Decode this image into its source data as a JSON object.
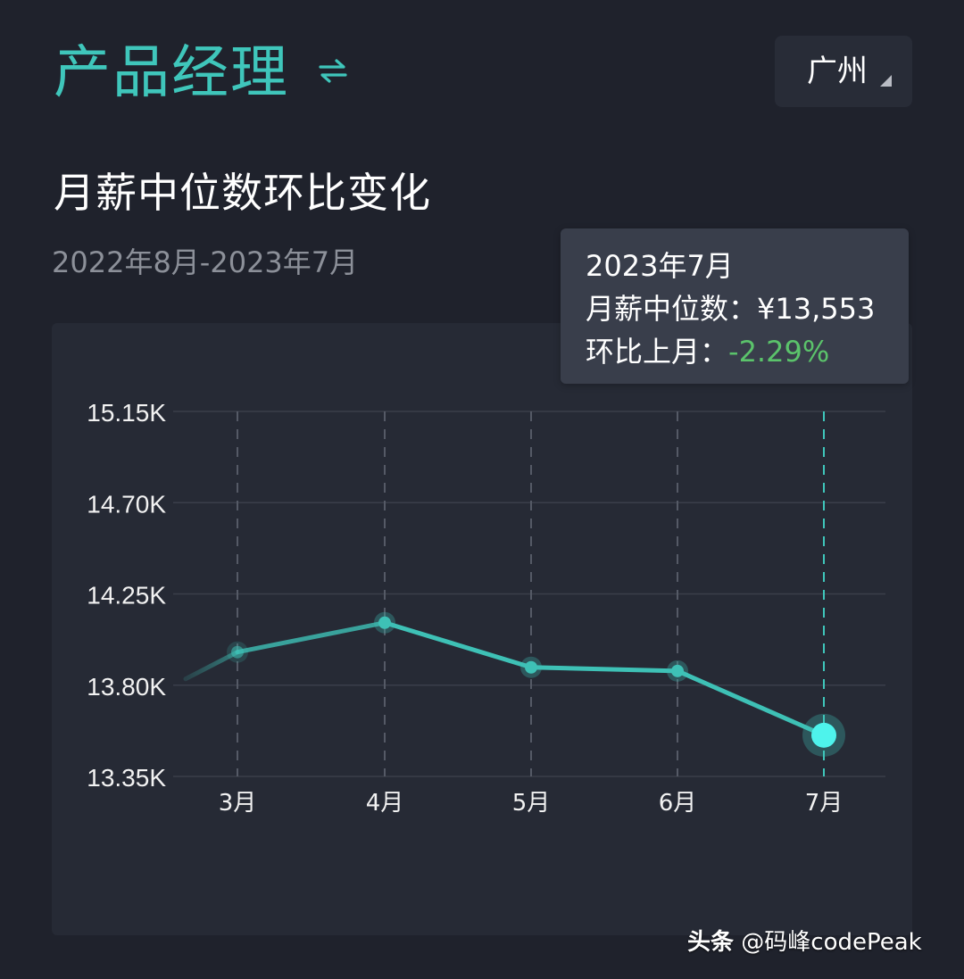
{
  "header": {
    "job_title": "产品经理",
    "swap_icon": "swap-arrows-icon",
    "city": "广州",
    "city_caret_icon": "caret-down-icon"
  },
  "section": {
    "title": "月薪中位数环比变化",
    "date_range": "2022年8月-2023年7月"
  },
  "tooltip": {
    "period": "2023年7月",
    "median_label": "月薪中位数：",
    "median_value": "¥13,553",
    "change_label": "环比上月：",
    "change_value": "-2.29%"
  },
  "colors": {
    "accent": "#3fc6bb",
    "line": "#3ec1b6",
    "active_marker": "#4ef3ec",
    "negative_change": "#5bc36b",
    "background": "#1f222c",
    "card": "#262a35"
  },
  "chart_data": {
    "type": "line",
    "title": "月薪中位数环比变化",
    "subtitle": "2022年8月-2023年7月",
    "xlabel": "",
    "ylabel": "",
    "categories": [
      "3月",
      "4月",
      "5月",
      "6月",
      "7月"
    ],
    "series": [
      {
        "name": "月薪中位数",
        "values": [
          13963,
          14108,
          13888,
          13870,
          13553
        ]
      }
    ],
    "y_ticks": [
      "15.15K",
      "14.70K",
      "14.25K",
      "13.80K",
      "13.35K"
    ],
    "ylim": [
      13350,
      15150
    ],
    "grid": true,
    "highlighted": {
      "category": "7月",
      "value": 13553,
      "change_pct": -2.29
    },
    "legend": "none"
  },
  "watermark": {
    "brand": "头条",
    "handle": "@码峰codePeak"
  }
}
